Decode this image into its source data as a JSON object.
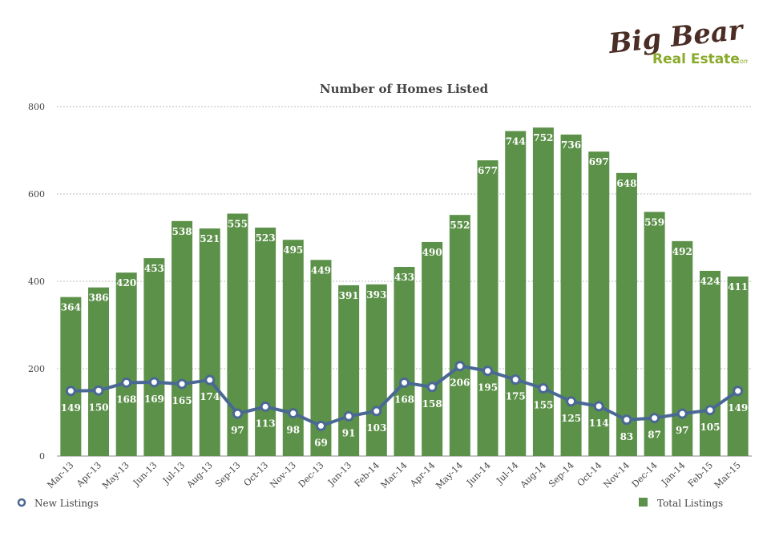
{
  "logo": {
    "line1": "Big Bear",
    "line2": "Real Estate",
    "suffix": ".com"
  },
  "colors": {
    "bars": "#5c9149",
    "line": "#4a6894",
    "grid": "#bbbbbb",
    "text": "#444444"
  },
  "chart_data": {
    "type": "bar",
    "title": "Number of Homes Listed",
    "xlabel": "",
    "ylabel": "",
    "ylim": [
      0,
      800
    ],
    "yticks": [
      0,
      200,
      400,
      600,
      800
    ],
    "grid": true,
    "legend": "bottom",
    "categories": [
      "Mar-13",
      "Apr-13",
      "May-13",
      "Jun-13",
      "Jul-13",
      "Aug-13",
      "Sep-13",
      "Oct-13",
      "Nov-13",
      "Dec-13",
      "Jan-13",
      "Feb-14",
      "Mar-14",
      "Apr-14",
      "May-14",
      "Jun-14",
      "Jul-14",
      "Aug-14",
      "Sep-14",
      "Oct-14",
      "Nov-14",
      "Dec-14",
      "Jan-14",
      "Feb-15",
      "Mar-15"
    ],
    "series": [
      {
        "name": "Total Listings",
        "type": "bar",
        "values": [
          364,
          386,
          420,
          453,
          538,
          521,
          555,
          523,
          495,
          449,
          391,
          393,
          433,
          490,
          552,
          677,
          744,
          752,
          736,
          697,
          648,
          559,
          492,
          424,
          411
        ]
      },
      {
        "name": "New Listings",
        "type": "line",
        "values": [
          149,
          150,
          168,
          169,
          165,
          174,
          97,
          113,
          98,
          69,
          91,
          103,
          168,
          158,
          206,
          195,
          175,
          155,
          125,
          114,
          83,
          87,
          97,
          105,
          149
        ]
      }
    ]
  }
}
